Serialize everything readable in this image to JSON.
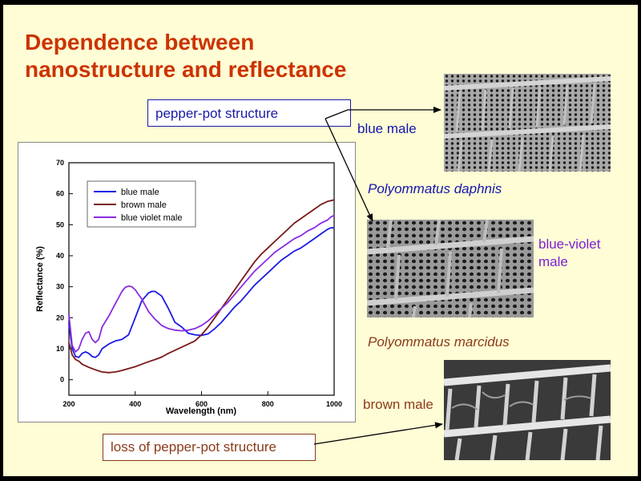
{
  "slide": {
    "title_line1": "Dependence between",
    "title_line2": "nanostructure and reflectance",
    "background": "#fefdd5",
    "title_color": "#cc3300"
  },
  "callouts": {
    "pepper_pot": "pepper-pot structure",
    "loss_pepper_pot": "loss of pepper-pot structure"
  },
  "labels": {
    "blue_male": "blue male",
    "blue_violet_line1": "blue-violet",
    "blue_violet_line2": "male",
    "brown_male": "brown male"
  },
  "species": {
    "daphnis": "Polyommatus daphnis",
    "marcidus": "Polyommatus marcidus"
  },
  "images": [
    {
      "icon": "sem-micrograph-pepper-pot-blue-male"
    },
    {
      "icon": "sem-micrograph-pepper-pot-blue-violet-male"
    },
    {
      "icon": "sem-micrograph-open-lattice-brown-male"
    }
  ],
  "chart_data": {
    "type": "line",
    "title": "",
    "xlabel": "Wavelength (nm)",
    "ylabel": "Reflectance (%)",
    "xlim": [
      200,
      1000
    ],
    "ylim": [
      -5,
      70
    ],
    "xticks": [
      200,
      400,
      600,
      800,
      1000
    ],
    "yticks": [
      0,
      10,
      20,
      30,
      40,
      50,
      60,
      70
    ],
    "grid": false,
    "legend_position": "top-left",
    "series": [
      {
        "name": "blue male",
        "color": "#1a1ae6",
        "x": [
          200,
          210,
          220,
          230,
          240,
          250,
          260,
          270,
          280,
          290,
          300,
          320,
          340,
          360,
          380,
          400,
          420,
          440,
          450,
          460,
          480,
          500,
          520,
          540,
          560,
          580,
          600,
          620,
          640,
          660,
          680,
          700,
          720,
          740,
          760,
          780,
          800,
          820,
          840,
          860,
          880,
          900,
          920,
          940,
          960,
          980,
          990,
          1000
        ],
        "y": [
          18,
          10,
          7.5,
          7.2,
          8.5,
          9,
          8.5,
          7.5,
          7.2,
          8,
          10,
          11.5,
          12.5,
          13,
          14.5,
          20,
          25.5,
          28,
          28.5,
          28.5,
          27,
          23,
          18.5,
          17,
          15,
          14.5,
          14.3,
          14.8,
          16.5,
          18.5,
          21,
          23.5,
          25.5,
          28,
          30.5,
          32.5,
          34.5,
          36.5,
          38.5,
          40,
          41.5,
          42.5,
          44,
          45.5,
          47,
          48.5,
          49,
          49
        ]
      },
      {
        "name": "brown male",
        "color": "#7a1818",
        "x": [
          200,
          210,
          220,
          230,
          240,
          260,
          280,
          300,
          320,
          340,
          360,
          380,
          400,
          420,
          440,
          460,
          480,
          500,
          520,
          540,
          560,
          580,
          600,
          620,
          640,
          660,
          680,
          700,
          720,
          740,
          760,
          780,
          800,
          820,
          840,
          860,
          880,
          900,
          920,
          940,
          960,
          980,
          1000
        ],
        "y": [
          12,
          8,
          6.5,
          6,
          5,
          4,
          3.2,
          2.5,
          2.3,
          2.5,
          3,
          3.6,
          4.2,
          5,
          5.8,
          6.5,
          7.3,
          8.5,
          9.5,
          10.5,
          11.5,
          12.5,
          14.5,
          17,
          20,
          23,
          26,
          29,
          32,
          35,
          38,
          40.5,
          42.5,
          44.5,
          46.5,
          48.5,
          50.5,
          52,
          53.5,
          55,
          56.5,
          57.5,
          58
        ]
      },
      {
        "name": "blue violet male",
        "color": "#8a2be2",
        "x": [
          200,
          210,
          220,
          230,
          240,
          250,
          260,
          270,
          280,
          290,
          300,
          320,
          340,
          360,
          370,
          380,
          390,
          400,
          420,
          440,
          460,
          480,
          500,
          520,
          540,
          560,
          580,
          600,
          620,
          640,
          660,
          680,
          700,
          720,
          740,
          760,
          780,
          800,
          820,
          840,
          860,
          880,
          900,
          920,
          940,
          960,
          980,
          990,
          1000
        ],
        "y": [
          21,
          11,
          9,
          10,
          13,
          15,
          15.5,
          13,
          12,
          13,
          17,
          20.5,
          24.5,
          28.5,
          29.8,
          30.2,
          30,
          29,
          26,
          22,
          19.5,
          17.5,
          16.5,
          16,
          15.8,
          16,
          16.5,
          17.5,
          19,
          21,
          23,
          25,
          27.5,
          30,
          32.5,
          35,
          37,
          39,
          41,
          42.5,
          44,
          45.5,
          46.5,
          48,
          49,
          50.5,
          51.5,
          52.5,
          53
        ]
      }
    ]
  }
}
